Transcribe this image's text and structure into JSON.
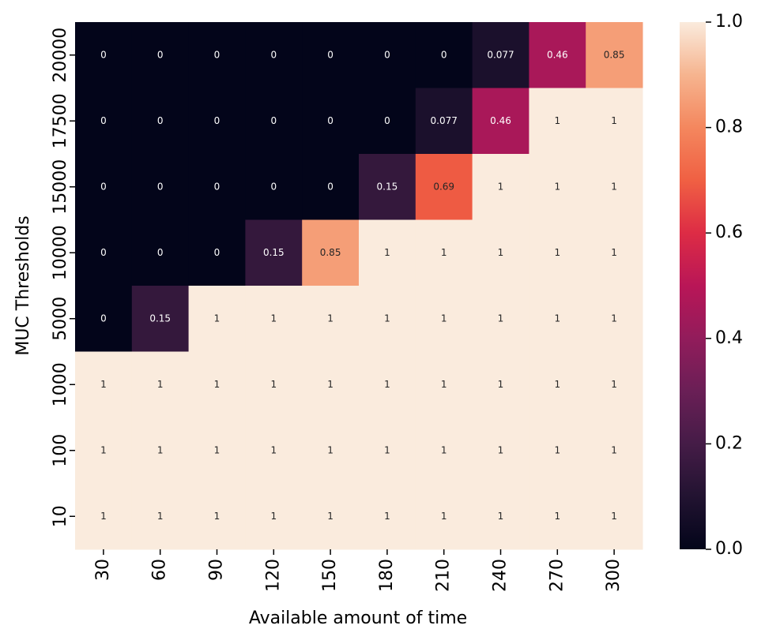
{
  "chart_data": {
    "type": "heatmap",
    "xlabel": "Available amount of time",
    "ylabel": "MUC Thresholds",
    "x_categories": [
      "30",
      "60",
      "90",
      "120",
      "150",
      "180",
      "210",
      "240",
      "270",
      "300"
    ],
    "y_categories": [
      "20000",
      "17500",
      "15000",
      "10000",
      "5000",
      "1000",
      "100",
      "10"
    ],
    "z": [
      [
        0,
        0,
        0,
        0,
        0,
        0,
        0,
        0.077,
        0.46,
        0.85
      ],
      [
        0,
        0,
        0,
        0,
        0,
        0,
        0.077,
        0.46,
        1,
        1
      ],
      [
        0,
        0,
        0,
        0,
        0,
        0.15,
        0.69,
        1,
        1,
        1
      ],
      [
        0,
        0,
        0,
        0.15,
        0.85,
        1,
        1,
        1,
        1,
        1
      ],
      [
        0,
        0.15,
        1,
        1,
        1,
        1,
        1,
        1,
        1,
        1
      ],
      [
        1,
        1,
        1,
        1,
        1,
        1,
        1,
        1,
        1,
        1
      ],
      [
        1,
        1,
        1,
        1,
        1,
        1,
        1,
        1,
        1,
        1
      ],
      [
        1,
        1,
        1,
        1,
        1,
        1,
        1,
        1,
        1,
        1
      ]
    ],
    "colormap": [
      "#03051a",
      "#221331",
      "#451c47",
      "#6a1f56",
      "#921c5b",
      "#b91657",
      "#dd2c45",
      "#f06043",
      "#f4875e",
      "#f6b48f",
      "#faebdd"
    ],
    "clim": [
      0,
      1
    ],
    "cticks": [
      {
        "value": 0,
        "label": "0.0"
      },
      {
        "value": 0.2,
        "label": "0.2"
      },
      {
        "value": 0.4,
        "label": "0.4"
      },
      {
        "value": 0.6,
        "label": "0.6"
      },
      {
        "value": 0.8,
        "label": "0.8"
      },
      {
        "value": 1,
        "label": "1.0"
      }
    ]
  }
}
